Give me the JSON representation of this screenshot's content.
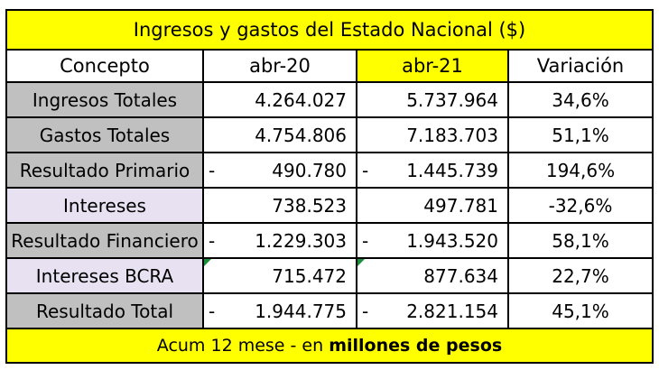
{
  "table": {
    "title": "Ingresos y gastos del Estado Nacional ($)",
    "headers": {
      "concept": "Concepto",
      "col1": "abr-20",
      "col2": "abr-21",
      "variation": "Variación"
    },
    "rows": [
      {
        "concept": "Ingresos Totales",
        "apr20_sign": "",
        "apr20": "4.264.027",
        "apr21_sign": "",
        "apr21": "5.737.964",
        "variation": "34,6%"
      },
      {
        "concept": "Gastos Totales",
        "apr20_sign": "",
        "apr20": "4.754.806",
        "apr21_sign": "",
        "apr21": "7.183.703",
        "variation": "51,1%"
      },
      {
        "concept": "Resultado Primario",
        "apr20_sign": "-",
        "apr20": "490.780",
        "apr21_sign": "-",
        "apr21": "1.445.739",
        "variation": "194,6%"
      },
      {
        "concept": "Intereses",
        "apr20_sign": "",
        "apr20": "738.523",
        "apr21_sign": "",
        "apr21": "497.781",
        "variation": "-32,6%"
      },
      {
        "concept": "Resultado Financiero",
        "apr20_sign": "-",
        "apr20": "1.229.303",
        "apr21_sign": "-",
        "apr21": "1.943.520",
        "variation": "58,1%"
      },
      {
        "concept": "Intereses BCRA",
        "apr20_sign": "",
        "apr20": "715.472",
        "apr21_sign": "",
        "apr21": "877.634",
        "variation": "22,7%"
      },
      {
        "concept": "Resultado Total",
        "apr20_sign": "-",
        "apr20": "1.944.775",
        "apr21_sign": "-",
        "apr21": "2.821.154",
        "variation": "45,1%"
      }
    ],
    "footer": {
      "prefix": "Acum 12 mese - en ",
      "emphasis": "millones de pesos"
    }
  },
  "colors": {
    "title_background": "#ffff00",
    "highlighted_header": "#ffff00",
    "gray_label_background": "#c0c0c0",
    "light_label_background": "#e8e1f1",
    "comment_marker": "#1a8f3a"
  }
}
